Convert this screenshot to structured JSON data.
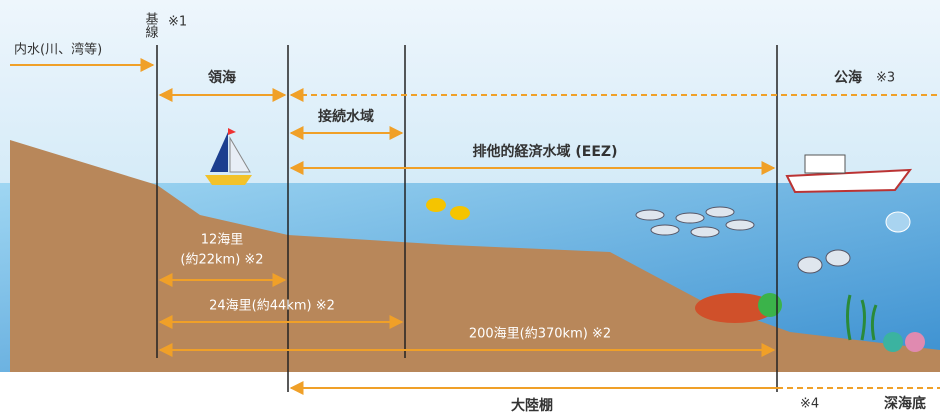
{
  "baseline": "基線",
  "note1": "※1",
  "internal_waters": "内水(川、湾等)",
  "territorial_sea": "領海",
  "high_seas": "公海",
  "note3": "※3",
  "contiguous_zone": "接続水域",
  "eez": "排他的経済水域 (EEZ)",
  "distance_12": "12海里",
  "distance_12_km": "(約22km) ※2",
  "distance_24": "24海里(約44km) ※2",
  "distance_200": "200海里(約370km) ※2",
  "continental_shelf": "大陸棚",
  "note4": "※4",
  "deep_seabed": "深海底"
}
